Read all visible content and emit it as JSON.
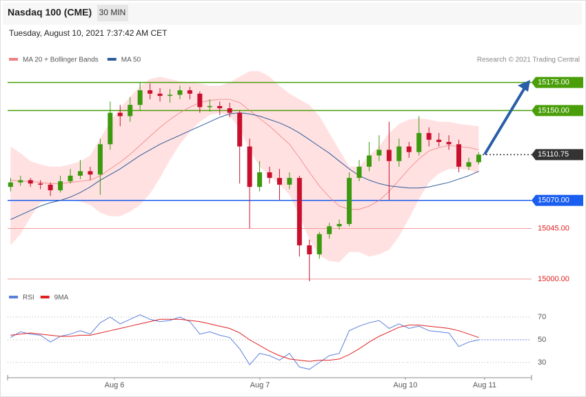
{
  "header": {
    "title": "Nasdaq 100 (CME)",
    "interval": "30 MIN",
    "timestamp": "Tuesday, August 10, 2021 7:37:42 AM CET"
  },
  "chart_data": [
    {
      "type": "candlestick",
      "credit": "Research © 2021 Trading Central",
      "x": [
        0,
        1,
        2,
        3,
        4,
        5,
        6,
        7,
        8,
        9,
        10,
        11,
        12,
        13,
        14,
        15,
        16,
        17,
        18,
        19,
        20,
        21,
        22,
        23,
        24,
        25,
        26,
        27,
        28,
        29,
        30,
        31,
        32,
        33,
        34,
        35,
        36,
        37,
        38,
        39,
        40,
        41,
        42,
        43,
        44,
        45,
        46,
        47
      ],
      "xlim": [
        -0.3,
        52.3
      ],
      "ylim": [
        14995,
        15195
      ],
      "up_color": "#3c9a0f",
      "down_color": "#c8102e",
      "open": [
        15082,
        15086,
        15088,
        15085,
        15084,
        15079,
        15087,
        15092,
        15096,
        15093,
        15120,
        15148,
        15145,
        15155,
        15168,
        15165,
        15163,
        15164,
        15168,
        15165,
        15153,
        15154,
        15152,
        15148,
        15118,
        15082,
        15095,
        15090,
        15084,
        15090,
        15030,
        15022,
        15040,
        15047,
        15049,
        15090,
        15100,
        15110,
        15115,
        15105,
        15118,
        15113,
        15130,
        15124,
        15122,
        15120,
        15100,
        15104
      ],
      "high": [
        15090,
        15092,
        15090,
        15088,
        15086,
        15092,
        15098,
        15106,
        15100,
        15125,
        15158,
        15155,
        15162,
        15175,
        15174,
        15170,
        15169,
        15172,
        15171,
        15167,
        15160,
        15158,
        15157,
        15150,
        15125,
        15105,
        15100,
        15098,
        15095,
        15092,
        15035,
        15042,
        15050,
        15053,
        15095,
        15106,
        15122,
        15128,
        15140,
        15125,
        15122,
        15145,
        15135,
        15130,
        15128,
        15124,
        15108,
        15113
      ],
      "low": [
        15078,
        15083,
        15082,
        15080,
        15074,
        15077,
        15085,
        15089,
        15088,
        15075,
        15115,
        15136,
        15140,
        15150,
        15160,
        15158,
        15157,
        15160,
        15160,
        15148,
        15149,
        15146,
        15144,
        15085,
        15045,
        15078,
        15085,
        15070,
        15080,
        15020,
        14998,
        15018,
        15036,
        15044,
        15047,
        15087,
        15096,
        15105,
        15070,
        15100,
        15108,
        15110,
        15118,
        15118,
        15115,
        15095,
        15097,
        15102
      ],
      "close": [
        15086,
        15088,
        15085,
        15084,
        15079,
        15087,
        15092,
        15096,
        15093,
        15120,
        15148,
        15145,
        15155,
        15168,
        15165,
        15163,
        15164,
        15168,
        15165,
        15153,
        15154,
        15152,
        15148,
        15118,
        15082,
        15095,
        15090,
        15084,
        15090,
        15030,
        15022,
        15040,
        15047,
        15049,
        15090,
        15100,
        15110,
        15115,
        15105,
        15118,
        15113,
        15130,
        15124,
        15122,
        15120,
        15100,
        15104,
        15110.75
      ],
      "band": {
        "color": "#ffdcdc",
        "upper": [
          15118,
          15112,
          15105,
          15102,
          15100,
          15100,
          15102,
          15105,
          15110,
          15125,
          15140,
          15152,
          15162,
          15172,
          15178,
          15180,
          15178,
          15176,
          15175,
          15174,
          15172,
          15172,
          15175,
          15180,
          15185,
          15185,
          15180,
          15172,
          15165,
          15160,
          15155,
          15145,
          15130,
          15115,
          15100,
          15100,
          15110,
          15118,
          15130,
          15138,
          15142,
          15143,
          15142,
          15140,
          15140,
          15138,
          15137,
          15136
        ],
        "lower": [
          15030,
          15040,
          15055,
          15068,
          15070,
          15070,
          15070,
          15069,
          15066,
          15059,
          15056,
          15056,
          15060,
          15066,
          15076,
          15090,
          15106,
          15120,
          15131,
          15140,
          15146,
          15148,
          15145,
          15134,
          15115,
          15100,
          15092,
          15084,
          15075,
          15056,
          15035,
          15021,
          15016,
          15015,
          15024,
          15024,
          15020,
          15022,
          15026,
          15038,
          15054,
          15071,
          15086,
          15094,
          15098,
          15098,
          15097,
          15094
        ]
      },
      "series": [
        {
          "name": "MA 20 + Bollinger Bands",
          "color": "#f08080",
          "values": [
            15088,
            15087,
            15087,
            15086,
            15085,
            15085,
            15086,
            15087,
            15088,
            15092,
            15098,
            15104,
            15111,
            15119,
            15127,
            15135,
            15142,
            15148,
            15153,
            15157,
            15159,
            15160,
            15160,
            15157,
            15150,
            15143,
            15136,
            15128,
            15120,
            15108,
            15095,
            15083,
            15073,
            15065,
            15062,
            15062,
            15065,
            15070,
            15078,
            15088,
            15098,
            15107,
            15114,
            15117,
            15119,
            15118,
            15117,
            15115
          ]
        },
        {
          "name": "MA 50",
          "color": "#2e5b9a",
          "values": [
            15053,
            15057,
            15061,
            15065,
            15068,
            15070,
            15073,
            15077,
            15082,
            15088,
            15093,
            15098,
            15104,
            15110,
            15115,
            15120,
            15124,
            15128,
            15132,
            15136,
            15140,
            15144,
            15147,
            15148,
            15147,
            15145,
            15142,
            15139,
            15135,
            15130,
            15124,
            15118,
            15112,
            15105,
            15098,
            15092,
            15088,
            15085,
            15083,
            15082,
            15081,
            15081,
            15082,
            15084,
            15086,
            15089,
            15092,
            15096
          ]
        }
      ],
      "levels": [
        {
          "value": 15175,
          "label": "15175.00",
          "color": "#4a9e0a",
          "style": "box"
        },
        {
          "value": 15150,
          "label": "15150.00",
          "color": "#4a9e0a",
          "style": "box"
        },
        {
          "value": 15110.75,
          "color": "#333333",
          "style": "current"
        },
        {
          "value": 15070,
          "label": "15070.00",
          "color": "#1a5ef0",
          "style": "box"
        },
        {
          "value": 15045,
          "label": "15045.00",
          "color": "#e02020",
          "style": "text"
        },
        {
          "value": 15000,
          "label": "15000.00",
          "color": "#e02020",
          "style": "text"
        }
      ]
    },
    {
      "type": "line",
      "ylim": [
        19,
        77
      ],
      "yticks": [
        30,
        50,
        70
      ],
      "grid": true,
      "xticks": [
        {
          "value": 10.43,
          "label": "Aug 6"
        },
        {
          "value": 25.03,
          "label": "Aug 7"
        },
        {
          "value": 39.63,
          "label": "Aug 10"
        },
        {
          "value": 47.59,
          "label": "Aug 11"
        }
      ],
      "series": [
        {
          "name": "RSI",
          "color": "#5b7fdc",
          "values": [
            52,
            57,
            55,
            54,
            48,
            53,
            55,
            58,
            55,
            65,
            70,
            64,
            68,
            72,
            68,
            66,
            67,
            70,
            66,
            55,
            57,
            54,
            52,
            42,
            28,
            38,
            36,
            32,
            38,
            26,
            24,
            30,
            36,
            38,
            58,
            62,
            65,
            67,
            60,
            64,
            60,
            62,
            58,
            57,
            56,
            44,
            48,
            50
          ]
        },
        {
          "name": "9MA",
          "color": "#e02020",
          "values": [
            54,
            55,
            56,
            55,
            54,
            53,
            53,
            54,
            54,
            56,
            58,
            60,
            62,
            64,
            66,
            68,
            68,
            68,
            67,
            66,
            64,
            62,
            60,
            56,
            50,
            45,
            40,
            36,
            33,
            32,
            31,
            32,
            32,
            33,
            37,
            42,
            48,
            53,
            57,
            61,
            63,
            63,
            62,
            61,
            60,
            58,
            55,
            52
          ]
        }
      ]
    }
  ]
}
